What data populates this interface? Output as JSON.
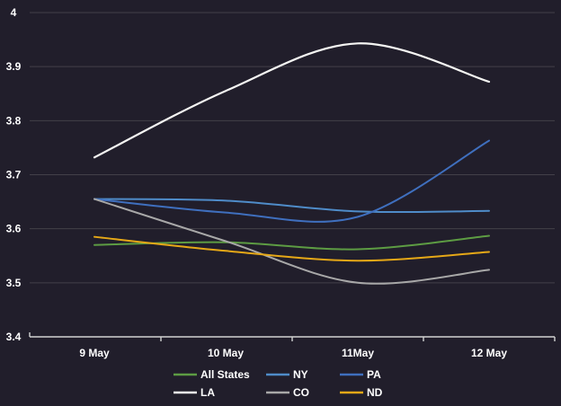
{
  "theme": {
    "background": "#211e2b",
    "gridline_color": "#434049",
    "axis_color": "#d2d2d2",
    "text_color": "#ffffff"
  },
  "chart_data": {
    "type": "line",
    "title": "",
    "xlabel": "",
    "ylabel": "",
    "categories": [
      "9 May",
      "10 May",
      "11May",
      "12 May"
    ],
    "series": [
      {
        "name": "All States",
        "color": "#5d9c43",
        "values": [
          3.57,
          3.575,
          3.562,
          3.587
        ]
      },
      {
        "name": "NY",
        "color": "#4f8cc9",
        "values": [
          3.655,
          3.652,
          3.632,
          3.633
        ]
      },
      {
        "name": "PA",
        "color": "#3f6fbe",
        "values": [
          3.655,
          3.63,
          3.622,
          3.763
        ]
      },
      {
        "name": "LA",
        "color": "#f5f5f3",
        "values": [
          3.732,
          3.855,
          3.943,
          3.872
        ]
      },
      {
        "name": "CO",
        "color": "#a8a8a8",
        "values": [
          3.655,
          3.577,
          3.5,
          3.524
        ]
      },
      {
        "name": "ND",
        "color": "#e6a817",
        "values": [
          3.585,
          3.559,
          3.541,
          3.557
        ]
      }
    ],
    "ylim": [
      3.4,
      4.0
    ],
    "y_tick_labels": [
      "3.4",
      "3.5",
      "3.6",
      "3.7",
      "3.8",
      "3.9",
      "4"
    ],
    "grid": true,
    "legend_position": "bottom",
    "legend_rows": [
      [
        "All States",
        "NY",
        "PA"
      ],
      [
        "LA",
        "CO",
        "ND"
      ]
    ]
  }
}
